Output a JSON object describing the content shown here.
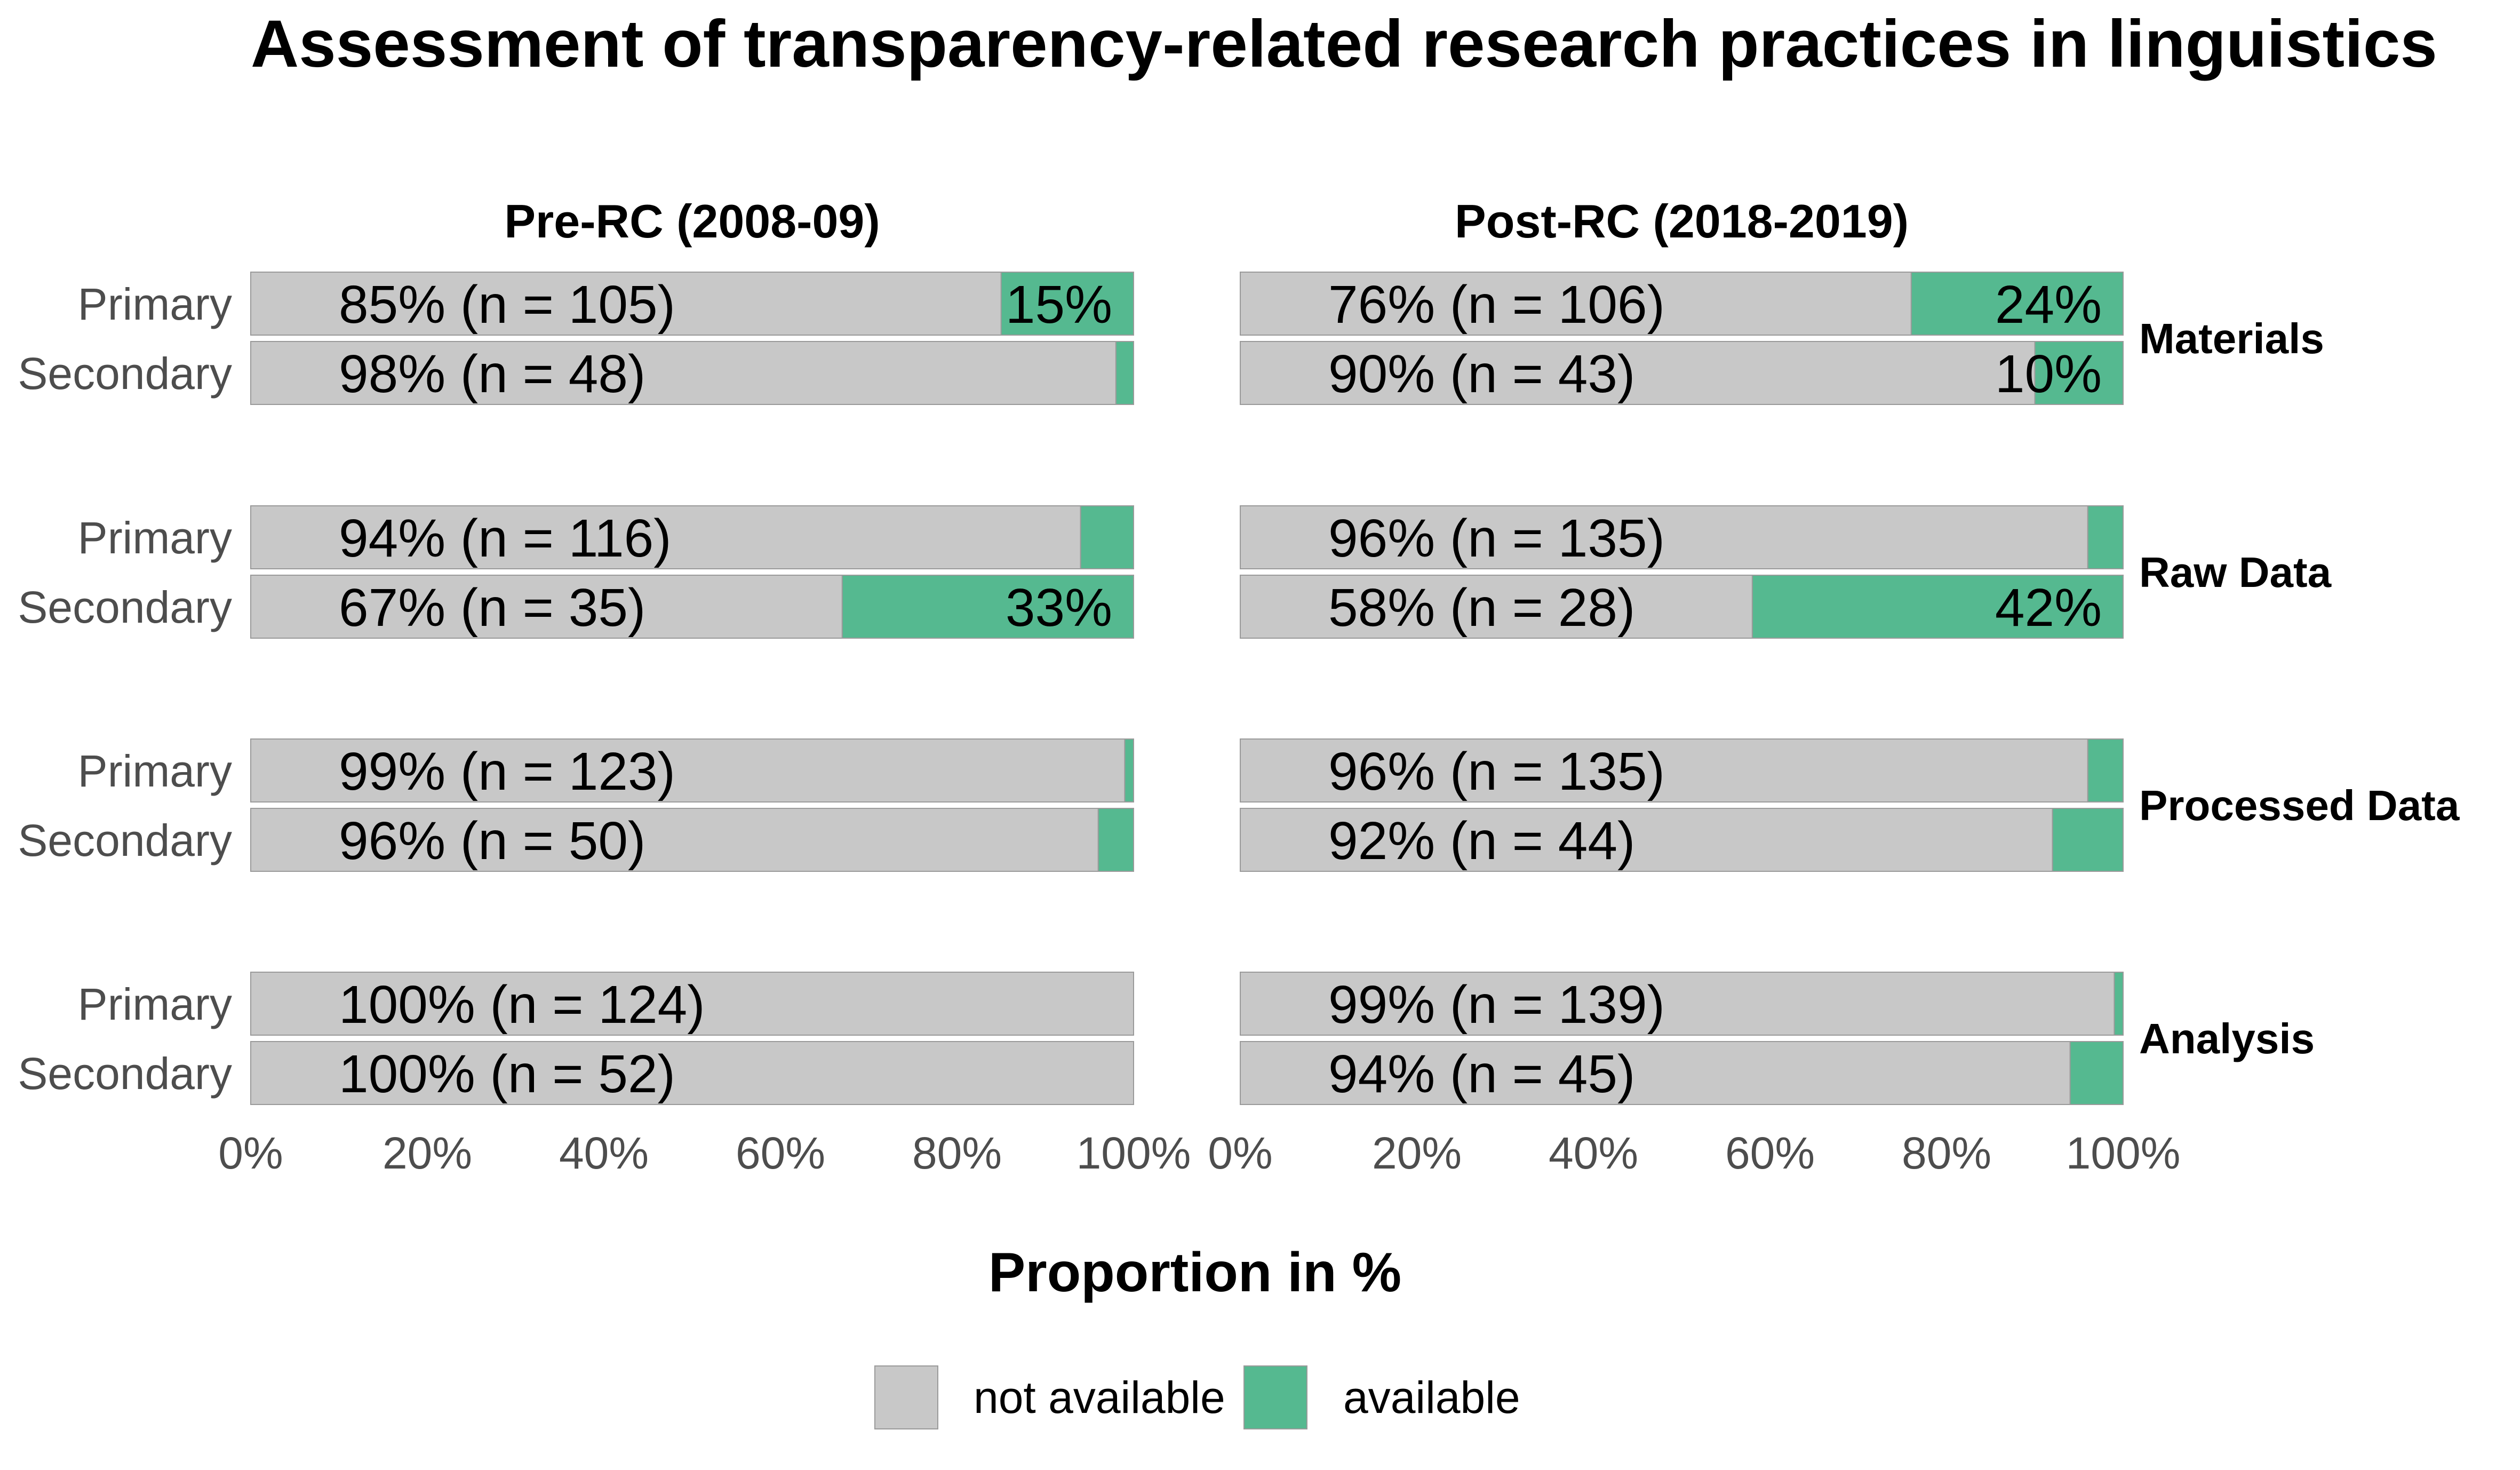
{
  "chart_data": {
    "type": "bar",
    "stacked": true,
    "orientation": "horizontal",
    "title": "Assessment of transparency-related research practices in linguistics",
    "xlabel": "Proportion in %",
    "xlim": [
      0,
      100
    ],
    "x_ticks": [
      "0%",
      "20%",
      "40%",
      "60%",
      "80%",
      "100%"
    ],
    "legend": {
      "position": "bottom",
      "entries": [
        {
          "name": "not available",
          "color": "#c8c8c8"
        },
        {
          "name": "available",
          "color": "#55b990"
        }
      ]
    },
    "panels": [
      {
        "title": "Pre-RC (2008-09)"
      },
      {
        "title": "Post-RC (2018-2019)"
      }
    ],
    "groups": [
      {
        "name": "Materials",
        "rows": [
          {
            "label": "Primary",
            "values": [
              {
                "not_available": 85,
                "available": 15,
                "label": "85% (n = 105)",
                "available_label": "15%"
              },
              {
                "not_available": 76,
                "available": 24,
                "label": "76% (n = 106)",
                "available_label": "24%"
              }
            ]
          },
          {
            "label": "Secondary",
            "values": [
              {
                "not_available": 98,
                "available": 2,
                "label": "98% (n = 48)",
                "available_label": ""
              },
              {
                "not_available": 90,
                "available": 10,
                "label": "90% (n = 43)",
                "available_label": "10%"
              }
            ]
          }
        ]
      },
      {
        "name": "Raw Data",
        "rows": [
          {
            "label": "Primary",
            "values": [
              {
                "not_available": 94,
                "available": 6,
                "label": "94% (n = 116)",
                "available_label": ""
              },
              {
                "not_available": 96,
                "available": 4,
                "label": "96% (n = 135)",
                "available_label": ""
              }
            ]
          },
          {
            "label": "Secondary",
            "values": [
              {
                "not_available": 67,
                "available": 33,
                "label": "67% (n = 35)",
                "available_label": "33%"
              },
              {
                "not_available": 58,
                "available": 42,
                "label": "58% (n = 28)",
                "available_label": "42%"
              }
            ]
          }
        ]
      },
      {
        "name": "Processed Data",
        "rows": [
          {
            "label": "Primary",
            "values": [
              {
                "not_available": 99,
                "available": 1,
                "label": "99% (n = 123)",
                "available_label": ""
              },
              {
                "not_available": 96,
                "available": 4,
                "label": "96% (n = 135)",
                "available_label": ""
              }
            ]
          },
          {
            "label": "Secondary",
            "values": [
              {
                "not_available": 96,
                "available": 4,
                "label": "96% (n = 50)",
                "available_label": ""
              },
              {
                "not_available": 92,
                "available": 8,
                "label": "92% (n = 44)",
                "available_label": ""
              }
            ]
          }
        ]
      },
      {
        "name": "Analysis",
        "rows": [
          {
            "label": "Primary",
            "values": [
              {
                "not_available": 100,
                "available": 0,
                "label": "100% (n = 124)",
                "available_label": ""
              },
              {
                "not_available": 99,
                "available": 1,
                "label": "99% (n = 139)",
                "available_label": ""
              }
            ]
          },
          {
            "label": "Secondary",
            "values": [
              {
                "not_available": 100,
                "available": 0,
                "label": "100% (n = 52)",
                "available_label": ""
              },
              {
                "not_available": 94,
                "available": 6,
                "label": "94% (n = 45)",
                "available_label": ""
              }
            ]
          }
        ]
      }
    ]
  }
}
